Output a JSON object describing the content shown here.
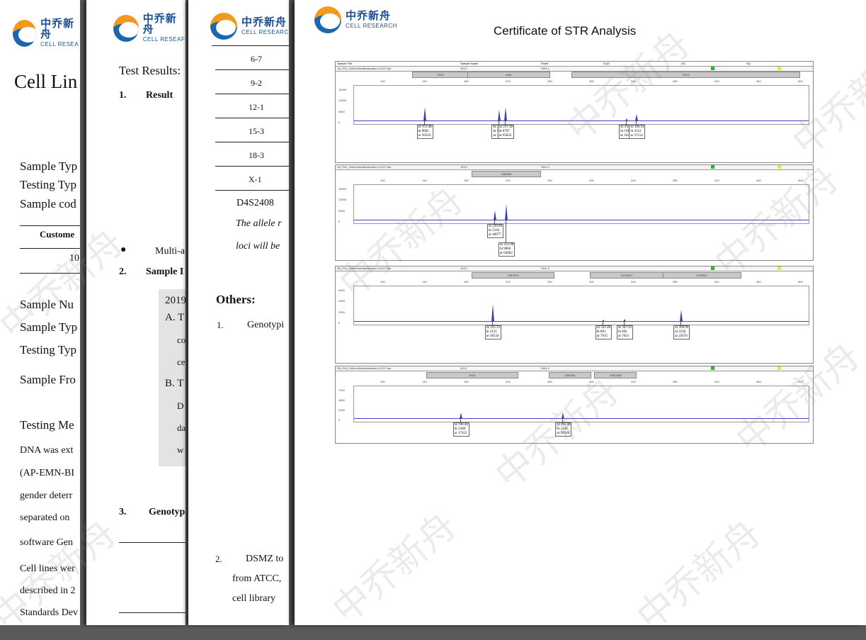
{
  "logo": {
    "cn": "中乔新舟",
    "en": "CELL RESEARCH",
    "en_p1": "CELL RESEA",
    "en_p2": "CELL RESEAF",
    "en_p3": "CELL RESEARC"
  },
  "page1": {
    "title": "Cell Lin",
    "lines": [
      "Sample Typ",
      "Testing Typ",
      "Sample cod",
      "Custome",
      "10",
      "Sample Nu",
      "Sample Typ",
      "Testing Typ",
      "Sample Fro",
      "Testing Me",
      "DNA was ext",
      "(AP-EMN-BI",
      "gender deterr",
      "separated on",
      "software Gen",
      "Cell lines wer",
      "described in 2",
      "Standards Dev"
    ]
  },
  "page2": {
    "test_results": "Test Results:",
    "s1_num": "1.",
    "s1": "Result",
    "bullet": "Multi-a",
    "s2_num": "2.",
    "s2": "Sample I",
    "box": [
      "2019",
      "A. T",
      "co",
      "ce",
      "B. T",
      "D",
      "da",
      "w"
    ],
    "s3_num": "3.",
    "s3": "Genotyp"
  },
  "page3": {
    "rows": [
      "6-7",
      "9-2",
      "12-1",
      "15-3",
      "18-3",
      "X-1"
    ],
    "locus": "D4S2408",
    "note1": "The allele r",
    "note2": "loci will be",
    "others": "Others:",
    "o1_num": "1.",
    "o1": "Genotypi",
    "o2_num": "2.",
    "o2": "DSMZ to",
    "o2b": "from ATCC,",
    "o2c": "cell library"
  },
  "page4": {
    "title": "Certificate of STR Analysis",
    "header": [
      "Sample File",
      "Sample Name",
      "Panel",
      "SQO",
      "OS",
      "SQ"
    ],
    "panels": [
      {
        "file": "1A_F02_CellLineAuthentication-3-0117.fsa",
        "sample": "1D12",
        "panel": "SHU-1",
        "bins": [
          {
            "name": "TH01",
            "x1": 0.13,
            "x2": 0.25
          },
          {
            "name": "vWA",
            "x1": 0.25,
            "x2": 0.43
          },
          {
            "name": "TPOX",
            "x1": 0.48,
            "x2": 0.98
          }
        ],
        "yticks": [
          "15000",
          "10000",
          "5000",
          "0"
        ],
        "peaks": [
          {
            "pos": 0.155,
            "h": 0.45,
            "label": [
              "sz 151.48",
              "ht 8083",
              "ar 50524"
            ]
          },
          {
            "pos": 0.32,
            "h": 0.35,
            "label": [
              "sz 233.28",
              "ht 5695",
              "ar 41825"
            ]
          },
          {
            "pos": 0.333,
            "h": 0.45,
            "label": [
              "sz 237.38",
              "ht 8797",
              "ar 65822"
            ]
          },
          {
            "pos": 0.6,
            "h": 0.1,
            "label": [
              "sz 334.60",
              "ht 1911",
              "ar 16430"
            ]
          },
          {
            "pos": 0.622,
            "h": 0.23,
            "label": [
              "sz 346.14",
              "ht 4152",
              "ar 37114"
            ]
          }
        ]
      },
      {
        "file": "1A_F02_CellLineAuthentication-3-0117.fsa",
        "sample": "1D12",
        "panel": "SHU-1",
        "bins": [
          {
            "name": "D5S818",
            "x1": 0.26,
            "x2": 0.41
          }
        ],
        "yticks": [
          "15000",
          "10000",
          "5000",
          "0"
        ],
        "peaks": [
          {
            "pos": 0.31,
            "h": 0.32,
            "label": [
              "sz 220.86",
              "ht 5316",
              "ar 40077"
            ]
          },
          {
            "pos": 0.335,
            "h": 0.52,
            "label": [
              "sz 232.98",
              "ht 9066",
              "ar 64062"
            ]
          }
        ]
      },
      {
        "file": "2B_F04_CellLineAuthentication-3-0117.fsa",
        "sample": "1D12",
        "panel": "SHU-2",
        "bins": [
          {
            "name": "CSF1PO",
            "x1": 0.26,
            "x2": 0.44
          },
          {
            "name": "D13S317",
            "x1": 0.52,
            "x2": 0.68
          },
          {
            "name": "D7S820",
            "x1": 0.68,
            "x2": 0.85
          }
        ],
        "yticks": [
          "6000",
          "4000",
          "2000",
          "0"
        ],
        "peaks": [
          {
            "pos": 0.305,
            "h": 0.55,
            "label": [
              "sz 225.13",
              "ht 3125",
              "ar 28534"
            ]
          },
          {
            "pos": 0.548,
            "h": 0.08,
            "label": [
              "sz 331.28",
              "ht 801",
              "ar 7915"
            ]
          },
          {
            "pos": 0.595,
            "h": 0.1,
            "label": [
              "sz 347.43",
              "ht 692",
              "ar 7053"
            ]
          },
          {
            "pos": 0.72,
            "h": 0.38,
            "label": [
              "sz 399.99",
              "ht 2326",
              "ar 23676"
            ]
          }
        ]
      },
      {
        "file": "2B_F04_CellLineAuthentication-3-0117.fsa",
        "sample": "1D12",
        "panel": "SHU-2",
        "bins": [
          {
            "name": "TH01",
            "x1": 0.16,
            "x2": 0.36
          },
          {
            "name": "D5S818",
            "x1": 0.43,
            "x2": 0.52
          },
          {
            "name": "D4S2408",
            "x1": 0.53,
            "x2": 0.62
          }
        ],
        "yticks": [
          "7200",
          "4800",
          "2400",
          "0"
        ],
        "peaks": [
          {
            "pos": 0.235,
            "h": 0.22,
            "label": [
              "sz 196.40",
              "ht 2368",
              "ar 17452"
            ]
          },
          {
            "pos": 0.46,
            "h": 0.22,
            "label": [
              "sz 295.88",
              "ht 2326",
              "ar 20928"
            ]
          }
        ]
      }
    ],
    "xticks": [
      "100",
      "140",
      "180",
      "220",
      "260",
      "300",
      "340",
      "380",
      "420",
      "460",
      "500"
    ]
  }
}
